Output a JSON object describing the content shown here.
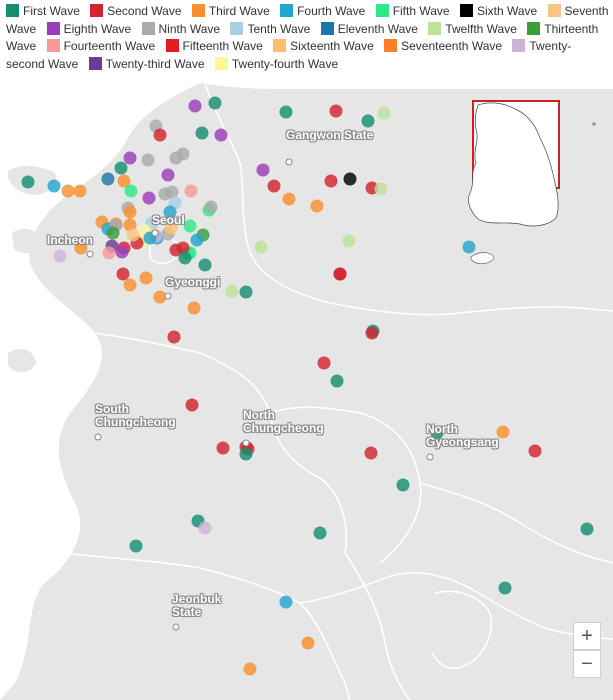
{
  "legend": [
    {
      "label": "First Wave",
      "color": "#138f70"
    },
    {
      "label": "Second Wave",
      "color": "#d3232e"
    },
    {
      "label": "Third Wave",
      "color": "#f7902d"
    },
    {
      "label": "Fourth Wave",
      "color": "#25a4cc"
    },
    {
      "label": "Fifth Wave",
      "color": "#2ee986"
    },
    {
      "label": "Sixth Wave",
      "color": "#000000"
    },
    {
      "label": "Seventh Wave",
      "color": "#f9c584"
    },
    {
      "label": "Eighth Wave",
      "color": "#9b3db9"
    },
    {
      "label": "Ninth Wave",
      "color": "#aaaaaa"
    },
    {
      "label": "Tenth Wave",
      "color": "#a8cfe2"
    },
    {
      "label": "Eleventh Wave",
      "color": "#1e75aa"
    },
    {
      "label": "Twelfth Wave",
      "color": "#bde29b"
    },
    {
      "label": "Thirteenth Wave",
      "color": "#3a9d3a"
    },
    {
      "label": "Fourteenth Wave",
      "color": "#f59a99"
    },
    {
      "label": "Fifteenth Wave",
      "color": "#e31b23"
    },
    {
      "label": "Sixteenth Wave",
      "color": "#fbbf74"
    },
    {
      "label": "Seventeenth Wave",
      "color": "#fb7f25"
    },
    {
      "label": "Twenty-second Wave",
      "color": "#cbb4d8"
    },
    {
      "label": "Twenty-third Wave",
      "color": "#6a3c96"
    },
    {
      "label": "Twenty-fourth Wave",
      "color": "#fbf89a"
    }
  ],
  "places": {
    "gangwon": "Gangwon State",
    "seoul": "Seoul",
    "incheon": "Incheon",
    "gyeonggi": "Gyeonggi",
    "south_chungcheong": "South Chungcheong",
    "north_chungcheong": "North Chungcheong",
    "north_gyeongsang": "North Gyeongsang",
    "jeonbuk": "Jeonbuk State"
  },
  "zoom": {
    "in": "+",
    "out": "−"
  },
  "markers": [
    {
      "wave": "Eighth Wave"
    },
    {
      "wave": "First Wave"
    },
    {
      "wave": "First Wave"
    },
    {
      "wave": "Second Wave"
    },
    {
      "wave": "Twelfth Wave"
    },
    {
      "wave": "First Wave"
    },
    {
      "wave": "Ninth Wave"
    },
    {
      "wave": "Second Wave"
    },
    {
      "wave": "First Wave"
    },
    {
      "wave": "Eighth Wave"
    },
    {
      "wave": "Ninth Wave"
    },
    {
      "wave": "Ninth Wave"
    },
    {
      "wave": "Ninth Wave"
    },
    {
      "wave": "Eighth Wave"
    },
    {
      "wave": "First Wave"
    },
    {
      "wave": "Eighth Wave"
    },
    {
      "wave": "Eleventh Wave"
    },
    {
      "wave": "Third Wave"
    },
    {
      "wave": "Fifth Wave"
    },
    {
      "wave": "Ninth Wave"
    },
    {
      "wave": "Ninth Wave"
    },
    {
      "wave": "Eighth Wave"
    },
    {
      "wave": "Fourteenth Wave"
    },
    {
      "wave": "First Wave"
    },
    {
      "wave": "Fourth Wave"
    },
    {
      "wave": "Third Wave"
    },
    {
      "wave": "Third Wave"
    },
    {
      "wave": "Eighth Wave"
    },
    {
      "wave": "Ninth Wave"
    },
    {
      "wave": "Tenth Wave"
    },
    {
      "wave": "Second Wave"
    },
    {
      "wave": "Third Wave"
    },
    {
      "wave": "Fifth Wave"
    },
    {
      "wave": "Ninth Wave"
    },
    {
      "wave": "Sixth Wave"
    },
    {
      "wave": "Second Wave"
    },
    {
      "wave": "Twelfth Wave"
    },
    {
      "wave": "Third Wave"
    },
    {
      "wave": "Second Wave"
    },
    {
      "wave": "Third Wave"
    },
    {
      "wave": "Fourth Wave"
    },
    {
      "wave": "Twelfth Wave"
    },
    {
      "wave": "Twelfth Wave"
    },
    {
      "wave": "Second Wave"
    },
    {
      "wave": "Third Wave"
    },
    {
      "wave": "Twenty-fourth Wave"
    },
    {
      "wave": "Seventh Wave"
    },
    {
      "wave": "Third Wave"
    },
    {
      "wave": "Thirteenth Wave"
    },
    {
      "wave": "Fourth Wave"
    },
    {
      "wave": "Fifth Wave"
    },
    {
      "wave": "Tenth Wave"
    },
    {
      "wave": "Third Wave"
    },
    {
      "wave": "Fourth Wave"
    },
    {
      "wave": "Ninth Wave"
    },
    {
      "wave": "Thirteenth Wave"
    },
    {
      "wave": "Twenty-second Wave"
    },
    {
      "wave": "Second Wave"
    },
    {
      "wave": "Fourth Wave"
    },
    {
      "wave": "Fifth Wave"
    },
    {
      "wave": "Twenty-third Wave"
    },
    {
      "wave": "Eighth Wave"
    },
    {
      "wave": "Fourteenth Wave"
    },
    {
      "wave": "Second Wave"
    },
    {
      "wave": "Seventh Wave"
    },
    {
      "wave": "Twenty-fourth Wave"
    },
    {
      "wave": "Third Wave"
    },
    {
      "wave": "Ninth Wave"
    },
    {
      "wave": "Twenty-second Wave"
    },
    {
      "wave": "Fourth Wave"
    },
    {
      "wave": "Sixteenth Wave"
    },
    {
      "wave": "Second Wave"
    },
    {
      "wave": "Fifth Wave"
    },
    {
      "wave": "Second Wave"
    },
    {
      "wave": "First Wave"
    },
    {
      "wave": "First Wave"
    },
    {
      "wave": "Second Wave"
    },
    {
      "wave": "Third Wave"
    },
    {
      "wave": "Third Wave"
    },
    {
      "wave": "Third Wave"
    },
    {
      "wave": "Third Wave"
    },
    {
      "wave": "Twelfth Wave"
    },
    {
      "wave": "First Wave"
    },
    {
      "wave": "Second Wave"
    },
    {
      "wave": "Second Wave"
    },
    {
      "wave": "First Wave"
    },
    {
      "wave": "Second Wave"
    },
    {
      "wave": "Second Wave"
    },
    {
      "wave": "First Wave"
    },
    {
      "wave": "Second Wave"
    },
    {
      "wave": "Second Wave"
    },
    {
      "wave": "Second Wave"
    },
    {
      "wave": "Second Wave"
    },
    {
      "wave": "First Wave"
    },
    {
      "wave": "Second Wave"
    },
    {
      "wave": "First Wave"
    },
    {
      "wave": "First Wave"
    },
    {
      "wave": "Third Wave"
    },
    {
      "wave": "Second Wave"
    },
    {
      "wave": "First Wave"
    },
    {
      "wave": "First Wave"
    },
    {
      "wave": "First Wave"
    },
    {
      "wave": "First Wave"
    },
    {
      "wave": "Twenty-second Wave"
    },
    {
      "wave": "First Wave"
    },
    {
      "wave": "Fourth Wave"
    },
    {
      "wave": "Third Wave"
    },
    {
      "wave": "Third Wave"
    },
    {
      "wave": "Fourth Wave"
    }
  ]
}
